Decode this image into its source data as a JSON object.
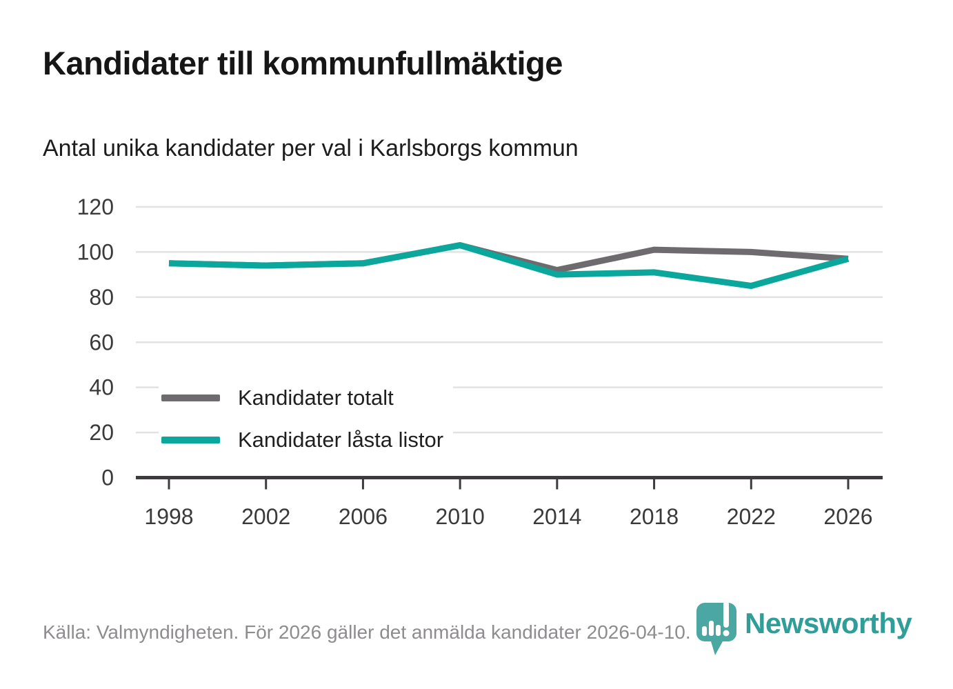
{
  "header": {
    "title": "Kandidater till kommunfullmäktige",
    "subtitle": "Antal unika kandidater per val i Karlsborgs kommun"
  },
  "chart_data": {
    "type": "line",
    "title": "Kandidater till kommunfullmäktige",
    "subtitle": "Antal unika kandidater per val i Karlsborgs kommun",
    "x": [
      1998,
      2002,
      2006,
      2010,
      2014,
      2018,
      2022,
      2026
    ],
    "x_tick_labels": [
      "1998",
      "2002",
      "2006",
      "2010",
      "2014",
      "2018",
      "2022",
      "2026"
    ],
    "series": [
      {
        "name": "Kandidater totalt",
        "color": "#6e6b6e",
        "values": [
          95,
          94,
          95,
          103,
          92,
          101,
          100,
          97
        ]
      },
      {
        "name": "Kandidater låsta listor",
        "color": "#0ca79c",
        "values": [
          95,
          94,
          95,
          103,
          90,
          91,
          85,
          97
        ]
      }
    ],
    "ylim": [
      0,
      120
    ],
    "yticks": [
      0,
      20,
      40,
      60,
      80,
      100,
      120
    ],
    "grid": true,
    "legend_position": "inside bottom-left",
    "grid_color": "#e2e2e2",
    "axis_color": "#3d3b3d",
    "tick_label_color": "#3a3a3a"
  },
  "footer": {
    "source_text": "Källa: Valmyndigheten. För 2026 gäller det anmälda kandidater 2026-04-10."
  },
  "branding": {
    "logo_text": "Newsworthy",
    "logo_color": "#2f9d98",
    "icon": "newsworthy-pin-barchart-icon",
    "icon_color": "#4aa7a1"
  }
}
